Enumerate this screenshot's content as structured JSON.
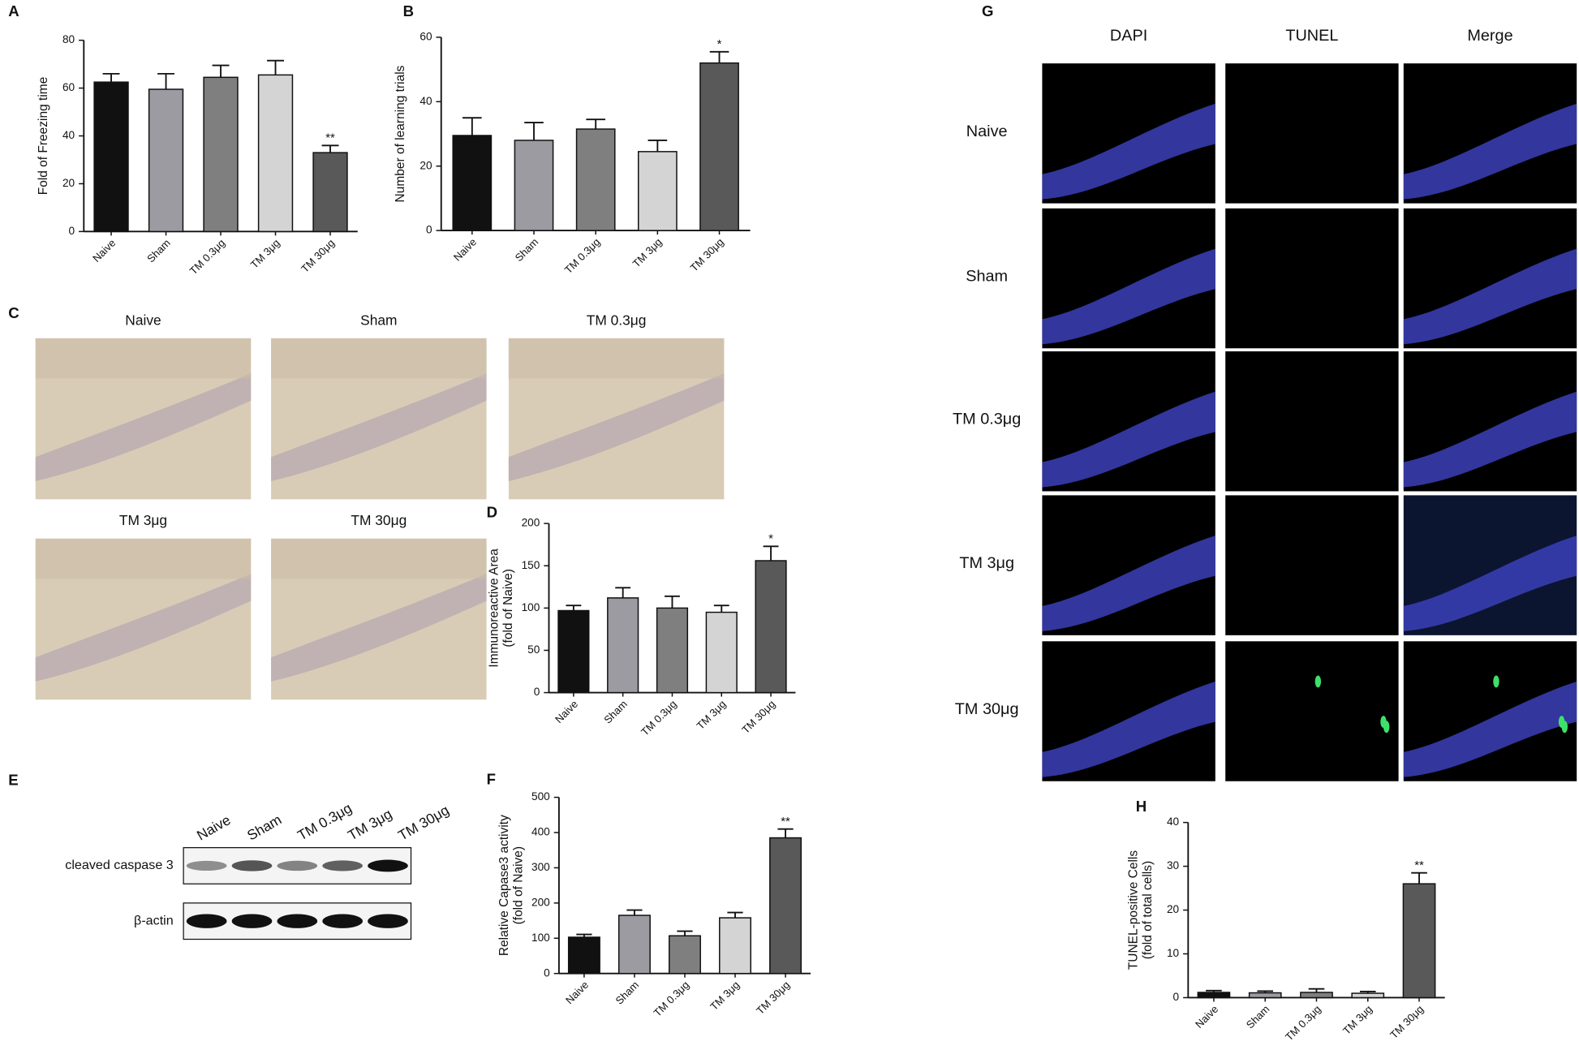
{
  "chart_data": [
    {
      "type": "bar",
      "panel": "A",
      "y_label": [
        "Fold of Freezing time"
      ],
      "categories": [
        "Naive",
        "Sham",
        "TM 0.3μg",
        "TM 3μg",
        "TM 30μg"
      ],
      "values": [
        62.5,
        59.5,
        64.5,
        65.5,
        33
      ],
      "errors": [
        3.5,
        6.5,
        5,
        6,
        3
      ],
      "significance": [
        null,
        null,
        null,
        null,
        "**"
      ],
      "colors": [
        "#111111",
        "#9b9ba1",
        "#7f7f7f",
        "#d4d4d4",
        "#595959"
      ],
      "ylim": [
        0,
        80
      ],
      "yticks": [
        0,
        20,
        40,
        60,
        80
      ]
    },
    {
      "type": "bar",
      "panel": "B",
      "y_label": [
        "Number of learning trials"
      ],
      "categories": [
        "Naive",
        "Sham",
        "TM 0.3μg",
        "TM 3μg",
        "TM 30μg"
      ],
      "values": [
        29.5,
        28,
        31.5,
        24.5,
        52
      ],
      "errors": [
        5.5,
        5.5,
        3,
        3.5,
        3.5
      ],
      "significance": [
        null,
        null,
        null,
        null,
        "*"
      ],
      "colors": [
        "#111111",
        "#9b9ba1",
        "#7f7f7f",
        "#d4d4d4",
        "#595959"
      ],
      "ylim": [
        0,
        60
      ],
      "yticks": [
        0,
        20,
        40,
        60
      ]
    },
    {
      "type": "bar",
      "panel": "D",
      "y_label": [
        "Immunoreactive Area",
        "(fold of Naive)"
      ],
      "categories": [
        "Naive",
        "Sham",
        "TM 0.3μg",
        "TM 3μg",
        "TM 30μg"
      ],
      "values": [
        97,
        112,
        100,
        95,
        156
      ],
      "errors": [
        6,
        12,
        14,
        8,
        17
      ],
      "significance": [
        null,
        null,
        null,
        null,
        "*"
      ],
      "colors": [
        "#111111",
        "#9b9ba1",
        "#7f7f7f",
        "#d4d4d4",
        "#595959"
      ],
      "ylim": [
        0,
        200
      ],
      "yticks": [
        0,
        50,
        100,
        150,
        200
      ]
    },
    {
      "type": "bar",
      "panel": "F",
      "y_label": [
        "Relative Capase3 activity",
        "(fold of Naive)"
      ],
      "categories": [
        "Naive",
        "Sham",
        "TM 0.3μg",
        "TM 3μg",
        "TM 30μg"
      ],
      "values": [
        103,
        165,
        107,
        158,
        385
      ],
      "errors": [
        8,
        15,
        13,
        15,
        25
      ],
      "significance": [
        null,
        null,
        null,
        null,
        "**"
      ],
      "colors": [
        "#111111",
        "#9b9ba1",
        "#7f7f7f",
        "#d4d4d4",
        "#595959"
      ],
      "ylim": [
        0,
        500
      ],
      "yticks": [
        0,
        100,
        200,
        300,
        400,
        500
      ]
    },
    {
      "type": "bar",
      "panel": "H",
      "y_label": [
        "TUNEL-positive Cells",
        "(fold of total cells)"
      ],
      "categories": [
        "Naive",
        "Sham",
        "TM 0.3μg",
        "TM 3μg",
        "TM 30μg"
      ],
      "values": [
        1.2,
        1.1,
        1.2,
        1.0,
        26
      ],
      "errors": [
        0.4,
        0.4,
        0.8,
        0.4,
        2.5
      ],
      "significance": [
        null,
        null,
        null,
        null,
        "**"
      ],
      "colors": [
        "#111111",
        "#9b9ba1",
        "#7f7f7f",
        "#d4d4d4",
        "#595959"
      ],
      "ylim": [
        0,
        40
      ],
      "yticks": [
        0,
        10,
        20,
        30,
        40
      ]
    }
  ],
  "panel_C": {
    "panel": "C",
    "images": [
      "Naive",
      "Sham",
      "TM 0.3μg",
      "TM 3μg",
      "TM 30μg"
    ]
  },
  "panel_E": {
    "panel": "E",
    "lanes": [
      "Naive",
      "Sham",
      "TM 0.3μg",
      "TM 3μg",
      "TM 30μg"
    ],
    "bands": [
      "cleaved caspase 3",
      "β-actin"
    ]
  },
  "panel_G": {
    "panel": "G",
    "columns": [
      "DAPI",
      "TUNEL",
      "Merge"
    ],
    "rows": [
      "Naive",
      "Sham",
      "TM 0.3μg",
      "TM 3μg",
      "TM 30μg"
    ]
  }
}
